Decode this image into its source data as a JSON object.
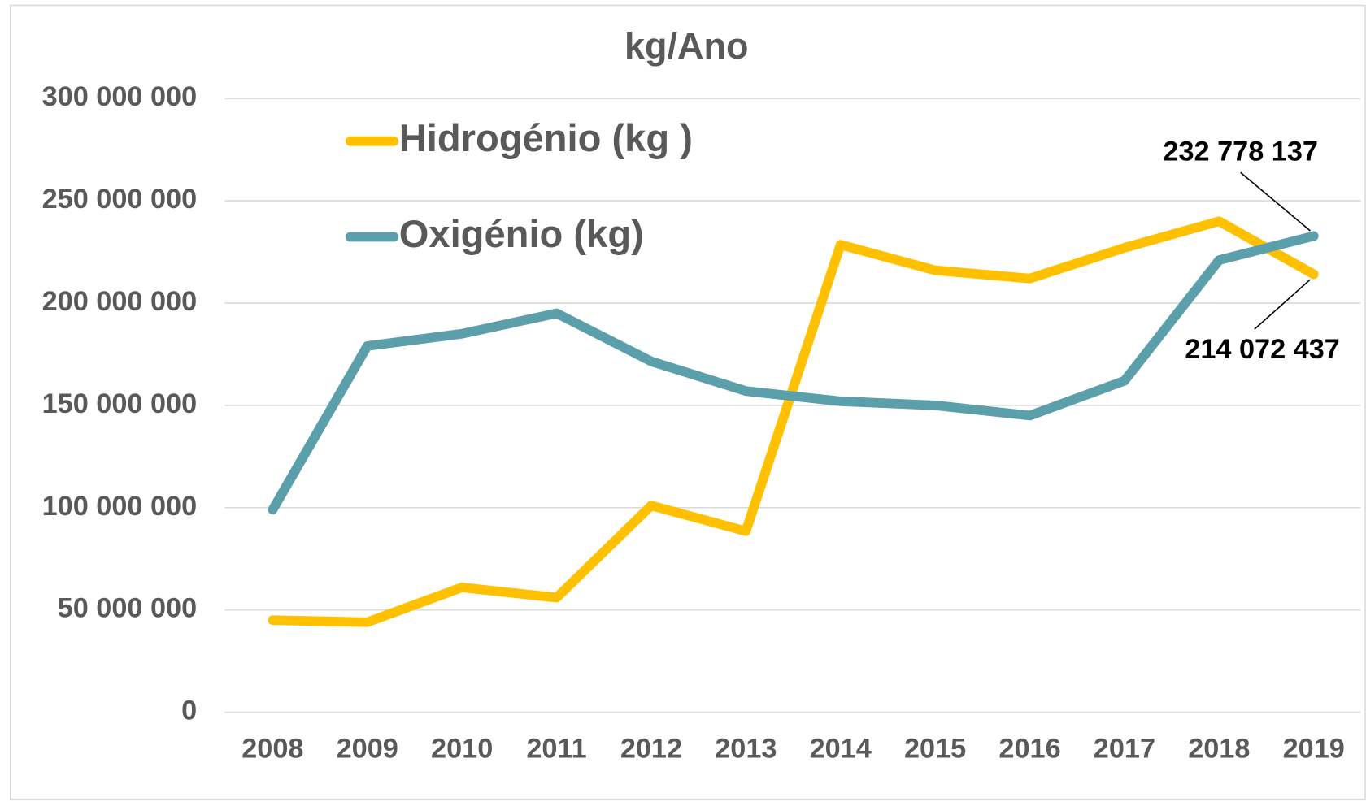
{
  "chart_data": {
    "type": "line",
    "title": "kg/Ano",
    "categories": [
      "2008",
      "2009",
      "2010",
      "2011",
      "2012",
      "2013",
      "2014",
      "2015",
      "2016",
      "2017",
      "2018",
      "2019"
    ],
    "series": [
      {
        "name": "Hidrogénio (kg )",
        "color": "#ffc000",
        "values": [
          45000000,
          44000000,
          61000000,
          56000000,
          101000000,
          88500000,
          228500000,
          216000000,
          212000000,
          227000000,
          240000000,
          214072437
        ],
        "value_labels": [
          null,
          null,
          null,
          null,
          null,
          null,
          null,
          null,
          null,
          null,
          null,
          "214 072 437"
        ]
      },
      {
        "name": "Oxigénio (kg)",
        "color": "#5b9faa",
        "values": [
          99000000,
          179000000,
          185000000,
          195000000,
          171500000,
          157000000,
          152000000,
          150000000,
          145000000,
          162000000,
          221000000,
          232778137
        ],
        "value_labels": [
          null,
          null,
          null,
          null,
          null,
          null,
          null,
          null,
          null,
          null,
          null,
          "232 778 137"
        ]
      }
    ],
    "ylim": [
      0,
      300000000
    ],
    "yticks": [
      0,
      {
        "value": 50000000,
        "label": "50 000 000"
      },
      {
        "value": 100000000,
        "label": "100 000 000"
      },
      {
        "value": 150000000,
        "label": "150 000 000"
      },
      {
        "value": 200000000,
        "label": "200 000 000"
      },
      {
        "value": 250000000,
        "label": "250 000 000"
      },
      {
        "value": 300000000,
        "label": "300 000 000"
      }
    ],
    "grid": true
  }
}
